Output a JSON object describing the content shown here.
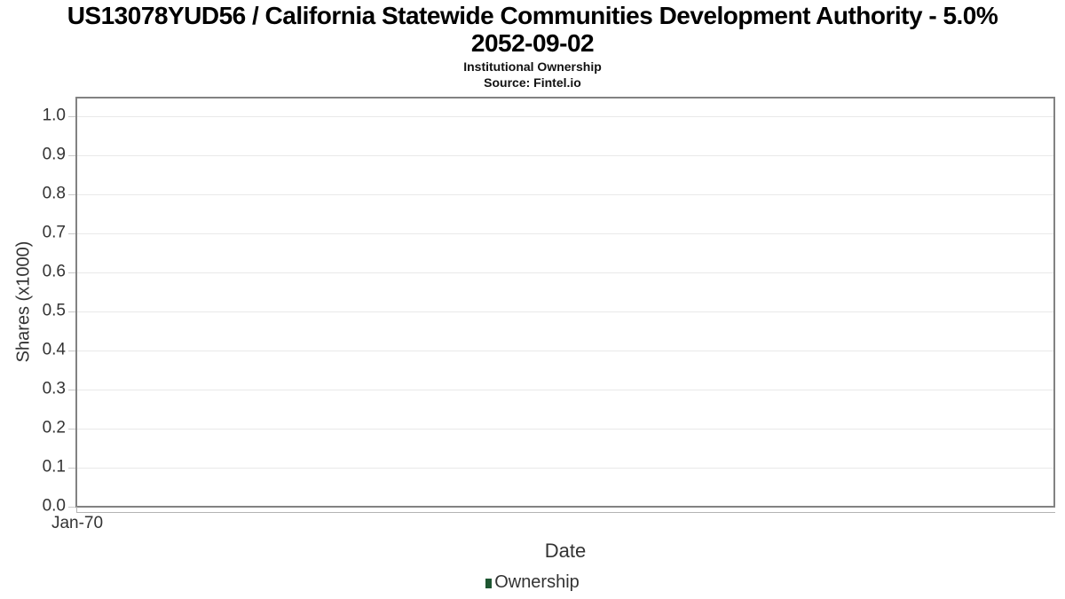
{
  "header": {
    "title_line1": "US13078YUD56 / California Statewide Communities Development Authority - 5.0%",
    "title_line2": "2052-09-02",
    "subtitle": "Institutional Ownership",
    "source": "Source: Fintel.io"
  },
  "chart_data": {
    "type": "line",
    "title": "US13078YUD56 / California Statewide Communities Development Authority - 5.0% 2052-09-02",
    "subtitle": "Institutional Ownership",
    "source": "Source: Fintel.io",
    "xlabel": "Date",
    "ylabel": "Shares (x1000)",
    "x_ticks": [
      "Jan-70"
    ],
    "y_ticks": [
      "0.0",
      "0.1",
      "0.2",
      "0.3",
      "0.4",
      "0.5",
      "0.6",
      "0.7",
      "0.8",
      "0.9",
      "1.0"
    ],
    "ylim": [
      0.0,
      1.05
    ],
    "grid": true,
    "legend_position": "bottom",
    "legend": [
      {
        "label": "Ownership",
        "color": "#1e5631"
      }
    ],
    "series": [
      {
        "name": "Ownership",
        "x": [],
        "values": []
      }
    ]
  },
  "colors": {
    "plot_border": "#828282",
    "gridline": "#e9e9e9",
    "tick_mark": "#c9c9c9",
    "axis_line": "#b4b4b4",
    "text": "#333333",
    "title_text": "#000000",
    "legend_marker": "#1e5631"
  }
}
